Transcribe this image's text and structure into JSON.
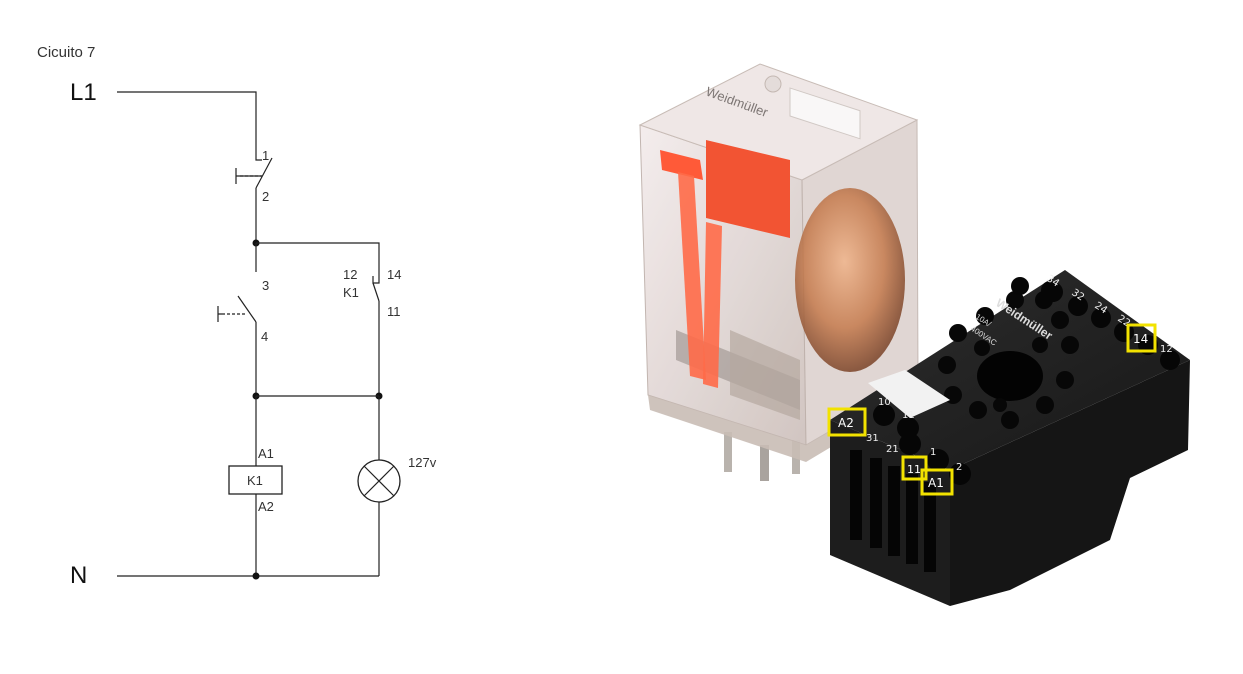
{
  "diagram": {
    "title": "Cicuito 7",
    "line_label": "L1",
    "neutral_label": "N",
    "switch1": {
      "top_terminal": "1",
      "bottom_terminal": "2"
    },
    "switch2": {
      "top_terminal": "3",
      "bottom_terminal": "4"
    },
    "contact_k1": {
      "left_top": "12",
      "left_bottom": "K1",
      "right_top": "14",
      "right_bottom": "11"
    },
    "coil": {
      "top": "A1",
      "name": "K1",
      "bottom": "A2"
    },
    "lamp": {
      "voltage": "127v"
    }
  },
  "photo": {
    "relay_brand": "Weidmüller",
    "base_brand": "Weidmüller",
    "base_rating_1": "10A/",
    "base_rating_2": "400VAC",
    "highlighted_pins": [
      "A2",
      "14",
      "11",
      "A1"
    ],
    "other_pins": [
      "34",
      "32",
      "24",
      "22",
      "9",
      "8",
      "7",
      "6",
      "10",
      "11",
      "21",
      "31",
      "1",
      "2",
      "3",
      "4",
      "12"
    ],
    "highlight_color": "#f2e200"
  }
}
